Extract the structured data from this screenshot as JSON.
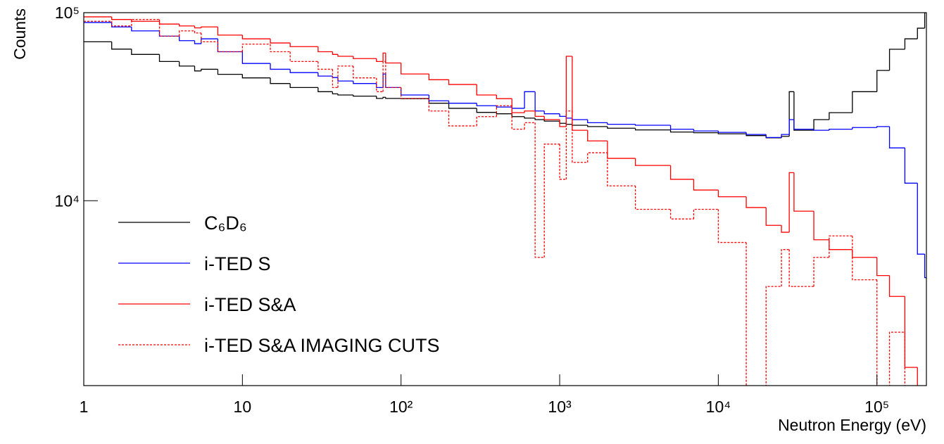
{
  "chart_data": {
    "type": "step",
    "xlabel": "Neutron Energy (eV)",
    "ylabel": "Counts",
    "xscale": "log",
    "yscale": "log",
    "xlim": [
      1,
      205000
    ],
    "ylim": [
      1040,
      100000
    ],
    "xticks": [
      1,
      10,
      {
        "value": 100,
        "label": "10²"
      },
      {
        "value": 1000,
        "label": "10³"
      },
      {
        "value": 10000,
        "label": "10⁴"
      },
      {
        "value": 100000,
        "label": "10⁵"
      }
    ],
    "yticks": [
      {
        "value": 10000,
        "label": "10⁴"
      },
      {
        "value": 100000,
        "label": "10⁵"
      }
    ],
    "legend": "left",
    "x": [
      1,
      1.5,
      2,
      3,
      4,
      5,
      5.5,
      7,
      10,
      15,
      20,
      30,
      37,
      40,
      50,
      70,
      77,
      80,
      100,
      150,
      200,
      300,
      400,
      500,
      600,
      700,
      800,
      1000,
      1100,
      1200,
      1500,
      2000,
      3000,
      5000,
      7000,
      10000,
      15000,
      20000,
      25000,
      28000,
      30000,
      40000,
      50000,
      70000,
      100000,
      120000,
      150000,
      180000,
      200000
    ],
    "series": [
      {
        "name": "C₆D₆",
        "color": "#000000",
        "line_style": "solid",
        "values": [
          70000,
          64000,
          60000,
          55000,
          52000,
          49000,
          50000,
          47000,
          45000,
          42000,
          40000,
          38000,
          37000,
          36500,
          36000,
          35000,
          35500,
          35000,
          34900,
          33000,
          31000,
          29500,
          29000,
          28000,
          27500,
          27000,
          26500,
          25800,
          25500,
          25200,
          24800,
          24300,
          23800,
          23200,
          23000,
          22700,
          22200,
          21600,
          22000,
          38000,
          23700,
          27000,
          29400,
          38000,
          49300,
          63900,
          72600,
          82700,
          100000
        ]
      },
      {
        "name": "i-TED S",
        "color": "#0000ff",
        "line_style": "solid",
        "values": [
          88700,
          84000,
          80000,
          75000,
          71000,
          68400,
          72600,
          62000,
          53700,
          50000,
          48000,
          46000,
          45200,
          43300,
          42000,
          40000,
          47200,
          40000,
          36500,
          34000,
          33000,
          32000,
          31500,
          31000,
          38000,
          30000,
          29000,
          28100,
          27500,
          27000,
          26000,
          25500,
          25200,
          24000,
          23500,
          23100,
          22500,
          21700,
          22500,
          27000,
          24000,
          23700,
          24000,
          24500,
          24800,
          19100,
          12400,
          5200,
          3900
        ]
      },
      {
        "name": "i-TED S&A",
        "color": "#ff0000",
        "line_style": "solid",
        "values": [
          95000,
          92000,
          90000,
          87000,
          85000,
          83000,
          84000,
          76000,
          72600,
          69000,
          66000,
          62000,
          60000,
          58600,
          57000,
          55000,
          61000,
          54000,
          47200,
          44000,
          41500,
          36500,
          34900,
          29400,
          30000,
          28100,
          27000,
          24800,
          58600,
          23700,
          20800,
          16800,
          15400,
          13000,
          11400,
          10500,
          9200,
          7400,
          6800,
          14100,
          8800,
          6200,
          5500,
          5000,
          4000,
          3100,
          1300,
          900,
          900
        ]
      },
      {
        "name": "i-TED S&A IMAGING CUTS",
        "color": "#ff0000",
        "line_style": "dashed",
        "values": [
          90000,
          85000,
          92000,
          75000,
          80000,
          78000,
          70000,
          62000,
          68000,
          62000,
          55000,
          50000,
          40000,
          52000,
          45000,
          38000,
          55000,
          40000,
          35000,
          30000,
          25000,
          28000,
          32000,
          24000,
          26000,
          5000,
          20000,
          13000,
          30000,
          16000,
          18000,
          12000,
          9000,
          8000,
          9000,
          6000,
          900,
          3500,
          5500,
          3500,
          3500,
          5000,
          6500,
          3800,
          900,
          2000,
          900,
          900,
          900
        ]
      }
    ]
  }
}
